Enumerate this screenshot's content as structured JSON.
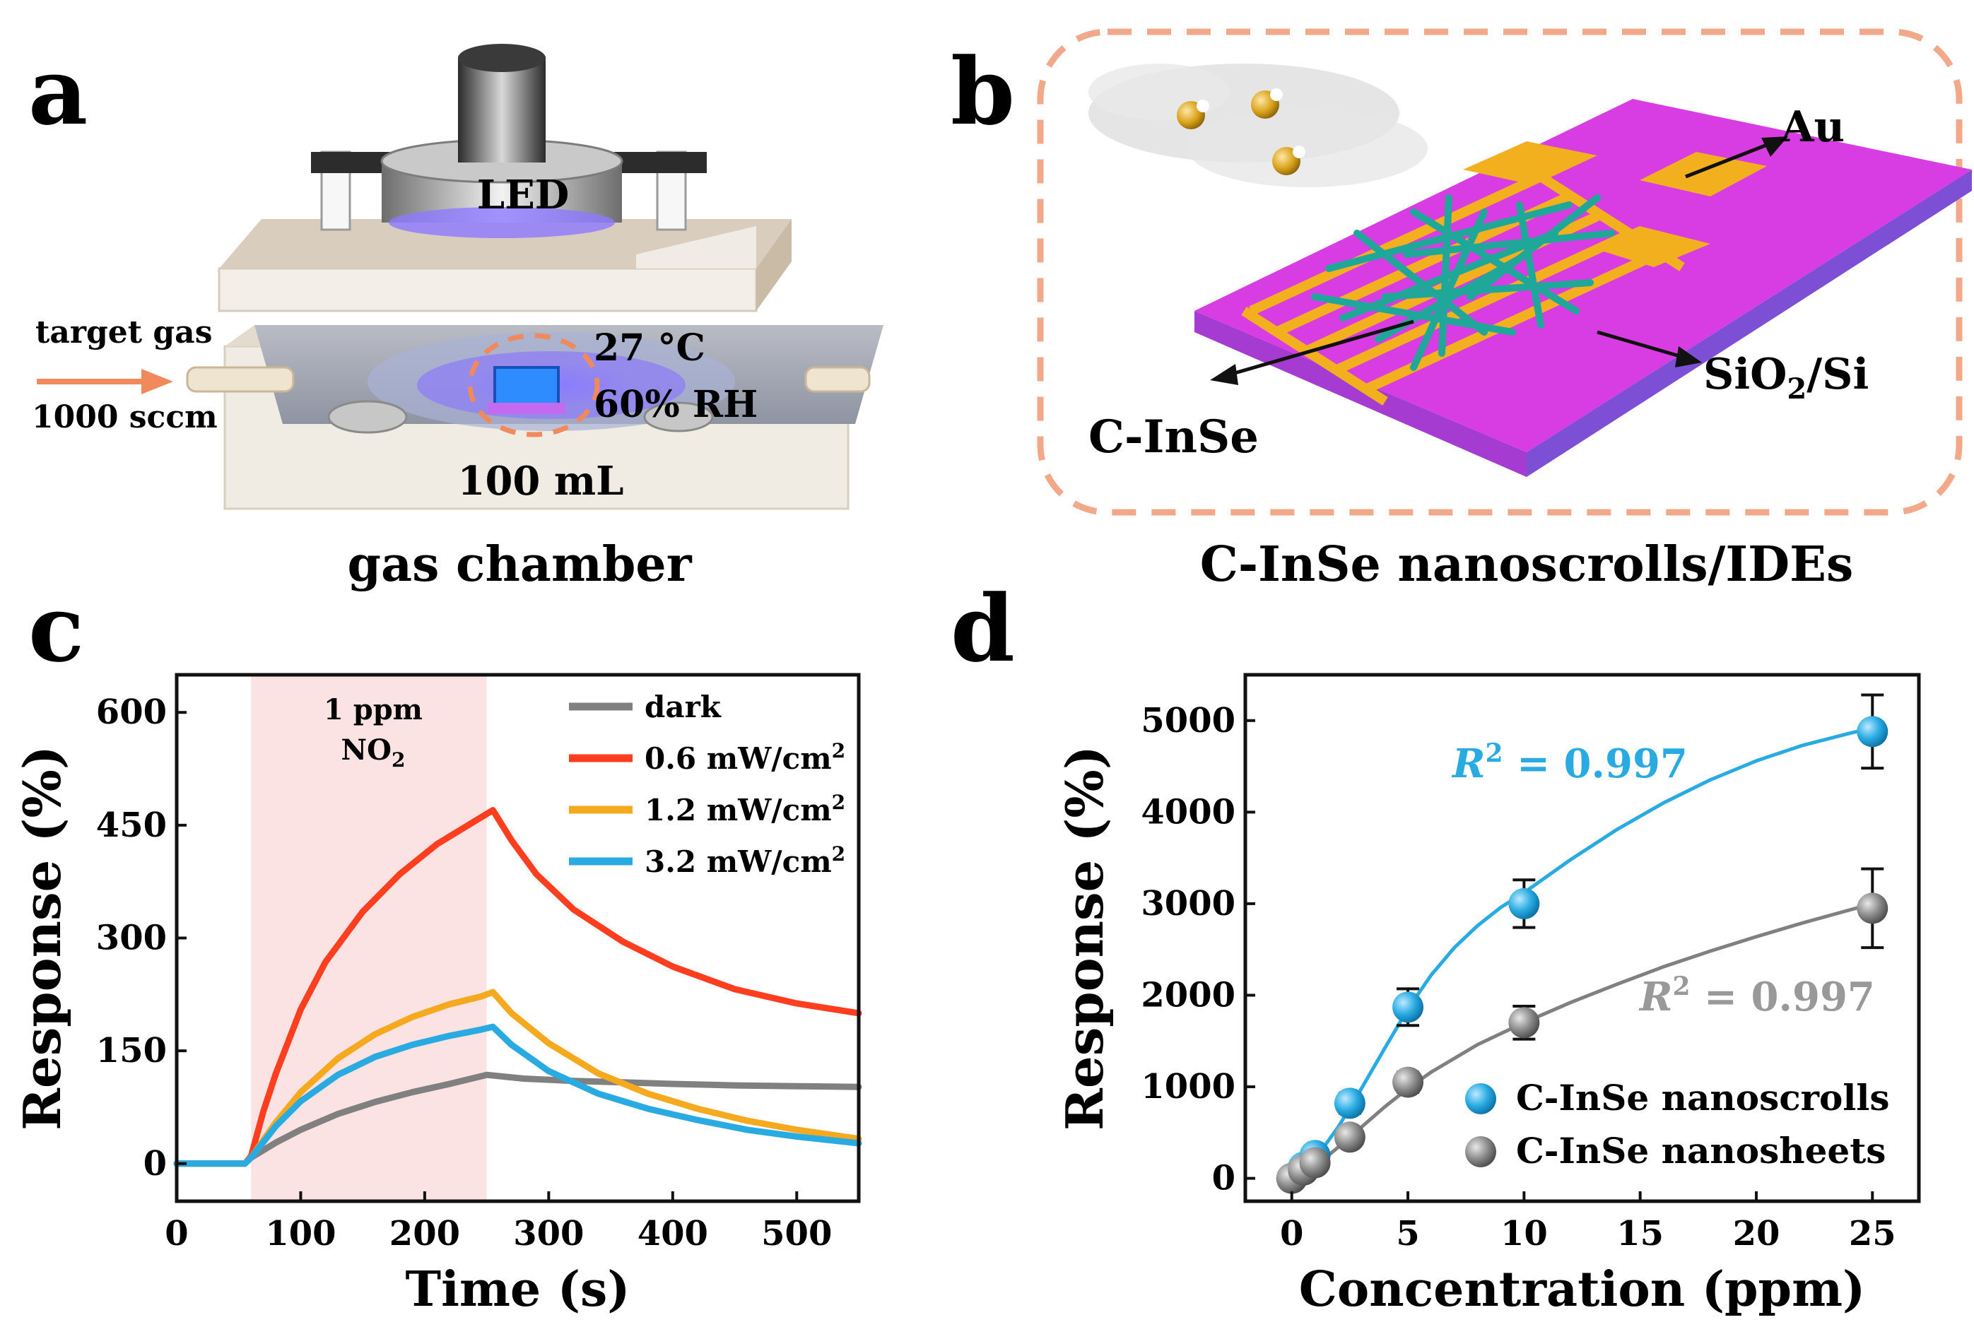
{
  "panels": {
    "a": {
      "letter": "a",
      "caption": "gas chamber",
      "led_label": "LED",
      "gas_label_line1": "target gas",
      "gas_label_line2": "1000 sccm",
      "temp_label": "27 °C",
      "humidity_label": "60% RH",
      "volume_label": "100 mL"
    },
    "b": {
      "letter": "b",
      "caption": "C-InSe nanoscrolls/IDEs",
      "au_label": "Au",
      "substrate_label_main": "SiO",
      "substrate_label_sub": "2",
      "substrate_label_tail": "/Si",
      "material_label": "C-InSe"
    },
    "c": {
      "letter": "c",
      "shade_label_line1": "1 ppm",
      "shade_label_line2_main": "NO",
      "shade_label_line2_sub": "2"
    },
    "d": {
      "letter": "d",
      "r2_blue_main": "R",
      "r2_blue_sup": "2",
      "r2_blue_tail": " = 0.997",
      "r2_gray_main": "R",
      "r2_gray_sup": "2",
      "r2_gray_tail": " = 0.997"
    }
  },
  "colors": {
    "orange_accent": "#f08a5d",
    "blue_series": "#29abe2",
    "gray_series": "#808080",
    "red_series": "#ff3d1f",
    "yellow_series": "#f5a91f",
    "shade": "#fbe3e3",
    "magenta": "#d63de0",
    "gold": "#f2b01e",
    "teal": "#1fa89a"
  },
  "chart_data": [
    {
      "id": "c",
      "type": "line",
      "title": "",
      "xlabel": "Time (s)",
      "ylabel": "Response (%)",
      "xlim": [
        0,
        550
      ],
      "ylim": [
        -50,
        650
      ],
      "xticks": [
        0,
        100,
        200,
        300,
        400,
        500
      ],
      "yticks": [
        0,
        150,
        300,
        450,
        600
      ],
      "shaded_region": [
        60,
        250
      ],
      "legend_position": "top-right",
      "series": [
        {
          "name": "dark",
          "legend": "dark",
          "legend_sup": "",
          "color": "#808080",
          "x": [
            0,
            55,
            60,
            80,
            100,
            130,
            160,
            190,
            220,
            250,
            280,
            320,
            360,
            400,
            450,
            500,
            550
          ],
          "y": [
            0,
            0,
            8,
            28,
            45,
            66,
            82,
            95,
            106,
            118,
            113,
            110,
            108,
            106,
            104,
            103,
            102
          ]
        },
        {
          "name": "0.6 mW/cm2",
          "legend": "0.6 mW/cm",
          "legend_sup": "2",
          "color": "#ff3d1f",
          "x": [
            0,
            55,
            60,
            70,
            80,
            100,
            120,
            150,
            180,
            210,
            240,
            255,
            270,
            290,
            320,
            360,
            400,
            450,
            500,
            550
          ],
          "y": [
            0,
            0,
            10,
            70,
            120,
            205,
            268,
            335,
            385,
            425,
            455,
            470,
            430,
            385,
            338,
            295,
            262,
            232,
            213,
            200
          ]
        },
        {
          "name": "1.2 mW/cm2",
          "legend": "1.2 mW/cm",
          "legend_sup": "2",
          "color": "#f5a91f",
          "x": [
            0,
            55,
            60,
            80,
            100,
            130,
            160,
            190,
            220,
            245,
            255,
            270,
            300,
            340,
            380,
            420,
            460,
            500,
            550
          ],
          "y": [
            0,
            0,
            8,
            55,
            95,
            140,
            172,
            195,
            212,
            222,
            228,
            200,
            160,
            120,
            93,
            73,
            57,
            45,
            33
          ]
        },
        {
          "name": "3.2 mW/cm2",
          "legend": "3.2 mW/cm",
          "legend_sup": "2",
          "color": "#29abe2",
          "x": [
            0,
            55,
            60,
            80,
            100,
            130,
            160,
            190,
            220,
            245,
            255,
            270,
            300,
            340,
            380,
            420,
            460,
            500,
            550
          ],
          "y": [
            0,
            0,
            8,
            50,
            83,
            118,
            142,
            158,
            170,
            178,
            182,
            158,
            123,
            93,
            73,
            58,
            45,
            36,
            27
          ]
        }
      ]
    },
    {
      "id": "d",
      "type": "scatter",
      "title": "",
      "xlabel": "Concentration (ppm)",
      "ylabel": "Response (%)",
      "xlim": [
        -2,
        27
      ],
      "ylim": [
        -250,
        5500
      ],
      "xticks": [
        0,
        5,
        10,
        15,
        20,
        25
      ],
      "yticks": [
        0,
        1000,
        2000,
        3000,
        4000,
        5000
      ],
      "legend_position": "bottom-right",
      "series": [
        {
          "name": "C-InSe nanoscrolls",
          "color": "#29abe2",
          "x": [
            0,
            0.5,
            1,
            2.5,
            5,
            10,
            25
          ],
          "y": [
            0,
            120,
            250,
            820,
            1870,
            3000,
            4880
          ],
          "err": [
            20,
            40,
            60,
            110,
            200,
            260,
            400
          ],
          "fit_x": [
            0,
            1,
            2,
            3,
            4,
            5,
            6,
            7,
            8,
            9,
            10,
            12,
            14,
            16,
            18,
            20,
            22,
            24,
            25
          ],
          "fit_y": [
            0,
            210,
            560,
            980,
            1420,
            1850,
            2220,
            2520,
            2760,
            2960,
            3120,
            3480,
            3810,
            4100,
            4350,
            4560,
            4730,
            4860,
            4920
          ]
        },
        {
          "name": "C-InSe nanosheets",
          "color": "#808080",
          "x": [
            0,
            0.5,
            1,
            2.5,
            5,
            10,
            25
          ],
          "y": [
            0,
            90,
            170,
            450,
            1050,
            1700,
            2950
          ],
          "err": [
            20,
            30,
            40,
            70,
            110,
            180,
            430
          ],
          "fit_x": [
            0,
            1,
            2,
            3,
            4,
            5,
            6,
            8,
            10,
            12,
            14,
            16,
            18,
            20,
            22,
            24,
            25
          ],
          "fit_y": [
            0,
            130,
            340,
            560,
            780,
            980,
            1160,
            1460,
            1700,
            1920,
            2120,
            2310,
            2480,
            2640,
            2790,
            2930,
            3000
          ]
        }
      ]
    }
  ]
}
